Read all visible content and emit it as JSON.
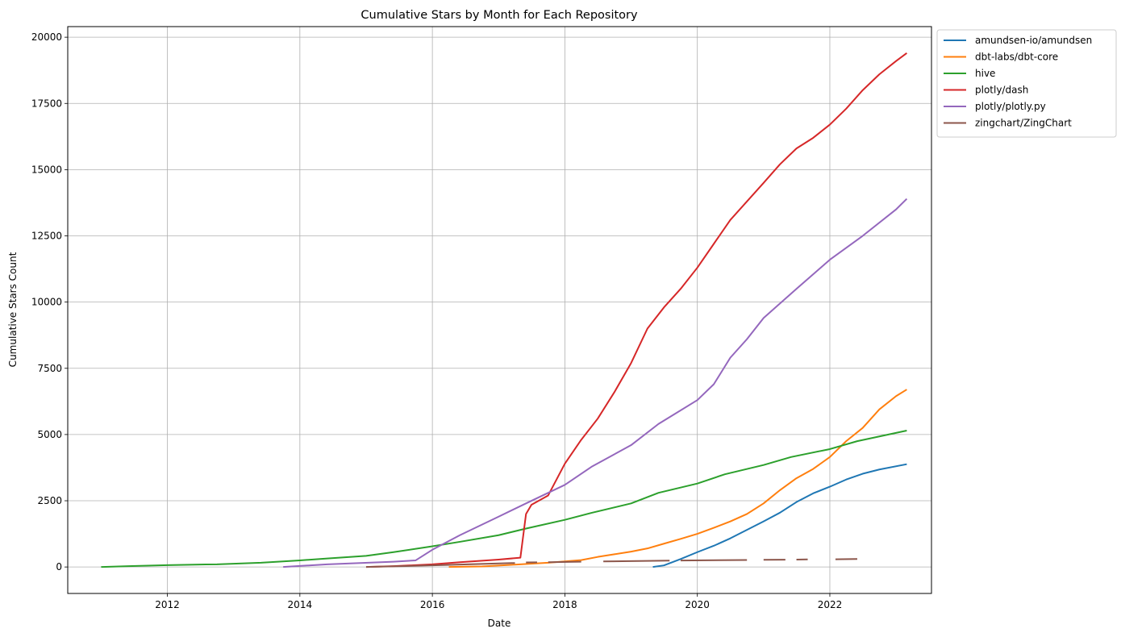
{
  "chart_data": {
    "type": "line",
    "title": "Cumulative Stars by Month for Each Repository",
    "xlabel": "Date",
    "ylabel": "Cumulative Stars Count",
    "xlim": [
      "2010-07-01",
      "2023-07-15"
    ],
    "ylim": [
      -1000,
      20400
    ],
    "x_ticks": [
      "2012-01-01",
      "2014-01-01",
      "2016-01-01",
      "2018-01-01",
      "2020-01-01",
      "2022-01-01"
    ],
    "x_tick_labels": [
      "2012",
      "2014",
      "2016",
      "2018",
      "2020",
      "2022"
    ],
    "y_ticks": [
      0,
      2500,
      5000,
      7500,
      10000,
      12500,
      15000,
      17500,
      20000
    ],
    "grid": true,
    "legend_position": "outside-top-right",
    "series": [
      {
        "name": "amundsen-io/amundsen",
        "color": "#1f77b4",
        "points": [
          [
            "2019-05-01",
            0
          ],
          [
            "2019-07-01",
            60
          ],
          [
            "2019-10-01",
            300
          ],
          [
            "2020-01-01",
            560
          ],
          [
            "2020-04-01",
            800
          ],
          [
            "2020-07-01",
            1080
          ],
          [
            "2020-10-01",
            1400
          ],
          [
            "2021-01-01",
            1720
          ],
          [
            "2021-04-01",
            2050
          ],
          [
            "2021-07-01",
            2450
          ],
          [
            "2021-10-01",
            2780
          ],
          [
            "2022-01-01",
            3030
          ],
          [
            "2022-04-01",
            3300
          ],
          [
            "2022-07-01",
            3520
          ],
          [
            "2022-10-01",
            3680
          ],
          [
            "2023-03-01",
            3880
          ]
        ]
      },
      {
        "name": "dbt-labs/dbt-core",
        "color": "#ff7f0e",
        "points": [
          [
            "2016-04-01",
            0
          ],
          [
            "2016-10-01",
            20
          ],
          [
            "2017-04-01",
            90
          ],
          [
            "2017-10-01",
            160
          ],
          [
            "2018-04-01",
            260
          ],
          [
            "2018-07-01",
            380
          ],
          [
            "2018-10-01",
            480
          ],
          [
            "2019-01-01",
            580
          ],
          [
            "2019-04-01",
            700
          ],
          [
            "2019-07-01",
            880
          ],
          [
            "2019-10-01",
            1060
          ],
          [
            "2020-01-01",
            1250
          ],
          [
            "2020-04-01",
            1480
          ],
          [
            "2020-07-01",
            1720
          ],
          [
            "2020-10-01",
            2000
          ],
          [
            "2021-01-01",
            2400
          ],
          [
            "2021-04-01",
            2900
          ],
          [
            "2021-07-01",
            3350
          ],
          [
            "2021-10-01",
            3700
          ],
          [
            "2022-01-01",
            4150
          ],
          [
            "2022-04-01",
            4750
          ],
          [
            "2022-07-01",
            5250
          ],
          [
            "2022-10-01",
            5950
          ],
          [
            "2023-01-01",
            6450
          ],
          [
            "2023-03-01",
            6700
          ]
        ]
      },
      {
        "name": "hive",
        "color": "#2ca02c",
        "points": [
          [
            "2011-01-01",
            0
          ],
          [
            "2011-06-01",
            30
          ],
          [
            "2012-01-01",
            70
          ],
          [
            "2012-06-01",
            90
          ],
          [
            "2012-10-01",
            100
          ],
          [
            "2013-06-01",
            160
          ],
          [
            "2014-01-01",
            250
          ],
          [
            "2014-06-01",
            320
          ],
          [
            "2015-01-01",
            420
          ],
          [
            "2015-06-01",
            560
          ],
          [
            "2016-01-01",
            780
          ],
          [
            "2016-06-01",
            950
          ],
          [
            "2017-01-01",
            1200
          ],
          [
            "2017-06-01",
            1450
          ],
          [
            "2018-01-01",
            1780
          ],
          [
            "2018-06-01",
            2050
          ],
          [
            "2019-01-01",
            2400
          ],
          [
            "2019-06-01",
            2800
          ],
          [
            "2020-01-01",
            3150
          ],
          [
            "2020-06-01",
            3500
          ],
          [
            "2021-01-01",
            3850
          ],
          [
            "2021-06-01",
            4150
          ],
          [
            "2022-01-01",
            4450
          ],
          [
            "2022-06-01",
            4750
          ],
          [
            "2023-03-01",
            5150
          ]
        ]
      },
      {
        "name": "plotly/dash",
        "color": "#d62728",
        "points": [
          [
            "2015-01-01",
            0
          ],
          [
            "2015-06-01",
            30
          ],
          [
            "2016-01-01",
            100
          ],
          [
            "2016-06-01",
            180
          ],
          [
            "2017-01-01",
            280
          ],
          [
            "2017-05-01",
            350
          ],
          [
            "2017-06-01",
            2000
          ],
          [
            "2017-07-01",
            2350
          ],
          [
            "2017-10-01",
            2700
          ],
          [
            "2018-01-01",
            3900
          ],
          [
            "2018-04-01",
            4800
          ],
          [
            "2018-07-01",
            5600
          ],
          [
            "2018-10-01",
            6600
          ],
          [
            "2019-01-01",
            7700
          ],
          [
            "2019-04-01",
            9000
          ],
          [
            "2019-07-01",
            9800
          ],
          [
            "2019-10-01",
            10500
          ],
          [
            "2020-01-01",
            11300
          ],
          [
            "2020-04-01",
            12200
          ],
          [
            "2020-07-01",
            13100
          ],
          [
            "2020-10-01",
            13800
          ],
          [
            "2021-01-01",
            14500
          ],
          [
            "2021-04-01",
            15200
          ],
          [
            "2021-07-01",
            15800
          ],
          [
            "2021-10-01",
            16200
          ],
          [
            "2022-01-01",
            16700
          ],
          [
            "2022-04-01",
            17300
          ],
          [
            "2022-07-01",
            18000
          ],
          [
            "2022-10-01",
            18600
          ],
          [
            "2023-01-01",
            19100
          ],
          [
            "2023-03-01",
            19400
          ]
        ]
      },
      {
        "name": "plotly/plotly.py",
        "color": "#9467bd",
        "points": [
          [
            "2013-10-01",
            0
          ],
          [
            "2014-06-01",
            100
          ],
          [
            "2015-06-01",
            200
          ],
          [
            "2015-10-01",
            250
          ],
          [
            "2016-01-01",
            650
          ],
          [
            "2016-06-01",
            1200
          ],
          [
            "2017-01-01",
            1900
          ],
          [
            "2017-06-01",
            2400
          ],
          [
            "2018-01-01",
            3100
          ],
          [
            "2018-06-01",
            3800
          ],
          [
            "2019-01-01",
            4600
          ],
          [
            "2019-06-01",
            5400
          ],
          [
            "2020-01-01",
            6300
          ],
          [
            "2020-04-01",
            6900
          ],
          [
            "2020-07-01",
            7900
          ],
          [
            "2020-10-01",
            8600
          ],
          [
            "2021-01-01",
            9400
          ],
          [
            "2021-07-01",
            10500
          ],
          [
            "2022-01-01",
            11600
          ],
          [
            "2022-07-01",
            12500
          ],
          [
            "2023-01-01",
            13500
          ],
          [
            "2023-03-01",
            13900
          ]
        ]
      },
      {
        "name": "zingchart/ZingChart",
        "color": "#8c564b",
        "segments": [
          [
            [
              "2015-01-01",
              0
            ],
            [
              "2016-01-01",
              60
            ],
            [
              "2017-04-01",
              150
            ]
          ],
          [
            [
              "2017-06-01",
              170
            ],
            [
              "2017-08-01",
              175
            ]
          ],
          [
            [
              "2017-10-01",
              180
            ],
            [
              "2018-04-01",
              200
            ]
          ],
          [
            [
              "2018-08-01",
              210
            ],
            [
              "2019-08-01",
              240
            ]
          ],
          [
            [
              "2019-10-01",
              245
            ],
            [
              "2020-10-01",
              265
            ]
          ],
          [
            [
              "2021-01-01",
              270
            ],
            [
              "2021-05-01",
              275
            ]
          ],
          [
            [
              "2021-07-01",
              280
            ],
            [
              "2021-09-01",
              285
            ]
          ],
          [
            [
              "2022-02-01",
              290
            ],
            [
              "2022-06-01",
              300
            ]
          ]
        ]
      }
    ]
  }
}
